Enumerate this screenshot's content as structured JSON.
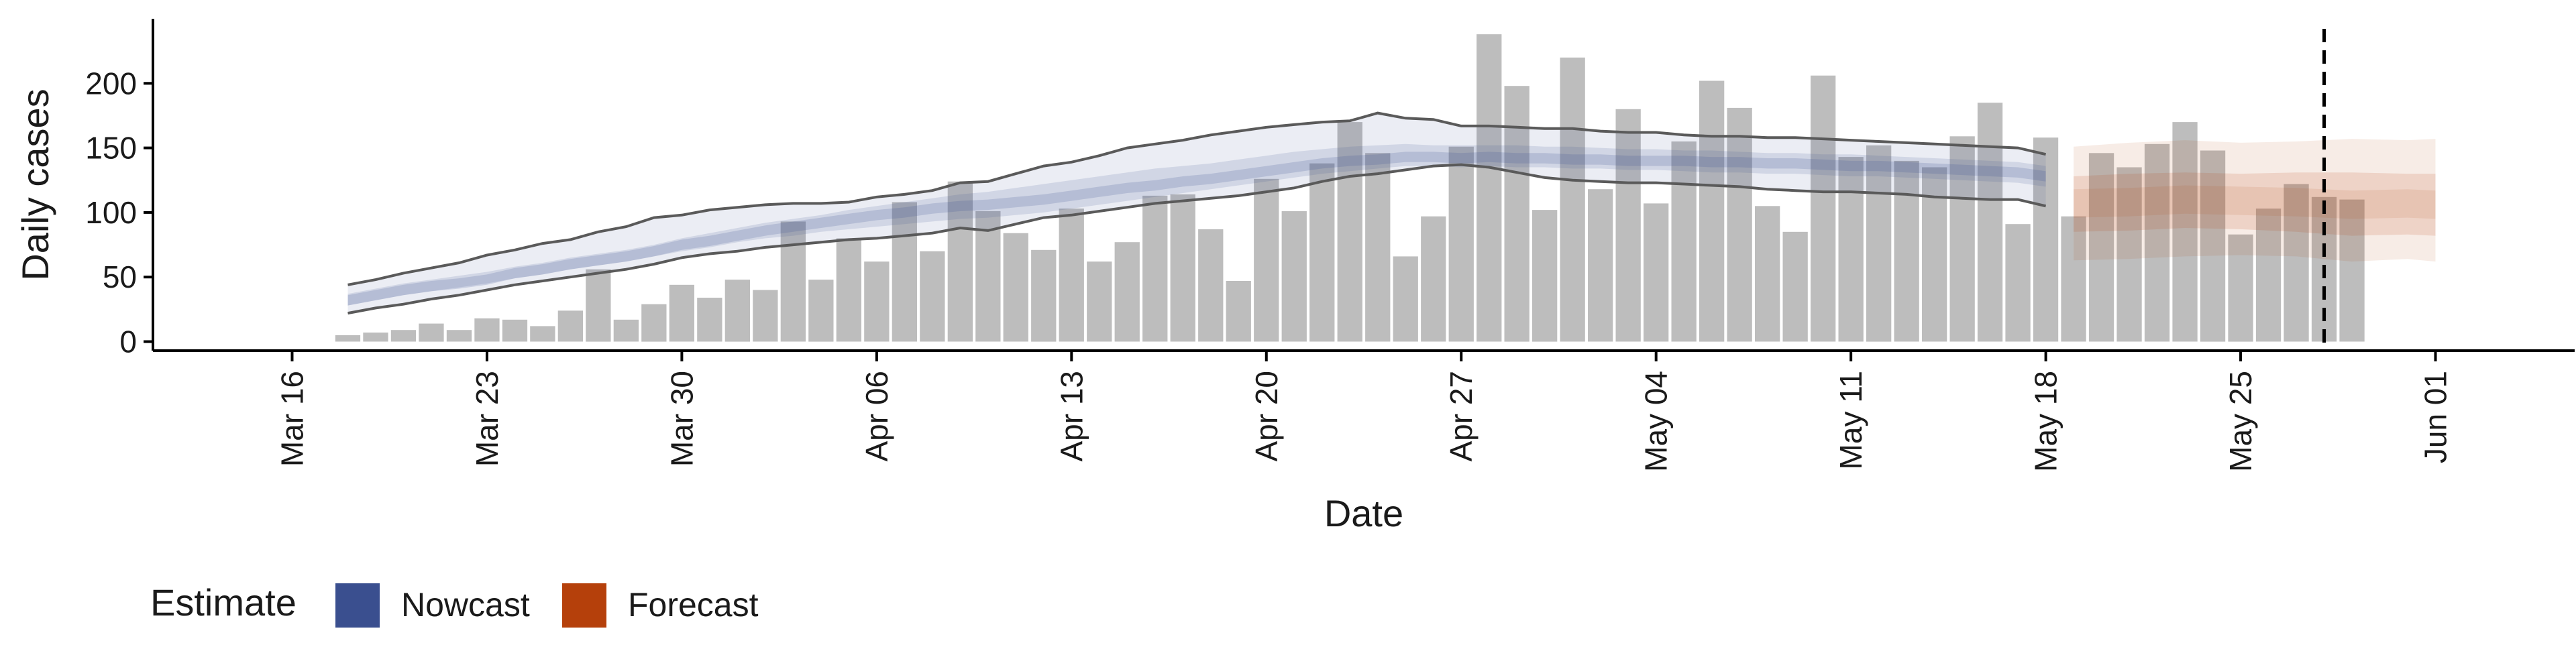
{
  "chart_data": {
    "type": "bar",
    "xlabel": "Date",
    "ylabel": "Daily cases",
    "ylim": [
      -7,
      250
    ],
    "yticks": [
      0,
      50,
      100,
      150,
      200
    ],
    "xlim": [
      "2020-03-11",
      "2020-06-06"
    ],
    "xticks": [
      {
        "date": "2020-03-16",
        "label": "Mar 16"
      },
      {
        "date": "2020-03-23",
        "label": "Mar 23"
      },
      {
        "date": "2020-03-30",
        "label": "Mar 30"
      },
      {
        "date": "2020-04-06",
        "label": "Apr 06"
      },
      {
        "date": "2020-04-13",
        "label": "Apr 13"
      },
      {
        "date": "2020-04-20",
        "label": "Apr 20"
      },
      {
        "date": "2020-04-27",
        "label": "Apr 27"
      },
      {
        "date": "2020-05-04",
        "label": "May 04"
      },
      {
        "date": "2020-05-11",
        "label": "May 11"
      },
      {
        "date": "2020-05-18",
        "label": "May 18"
      },
      {
        "date": "2020-05-25",
        "label": "May 25"
      },
      {
        "date": "2020-06-01",
        "label": "Jun 01"
      }
    ],
    "grid": false,
    "bars": {
      "color": "#bdbdbd",
      "x": [
        "2020-03-18",
        "2020-03-19",
        "2020-03-20",
        "2020-03-21",
        "2020-03-22",
        "2020-03-23",
        "2020-03-24",
        "2020-03-25",
        "2020-03-26",
        "2020-03-27",
        "2020-03-28",
        "2020-03-29",
        "2020-03-30",
        "2020-03-31",
        "2020-04-01",
        "2020-04-02",
        "2020-04-03",
        "2020-04-04",
        "2020-04-05",
        "2020-04-06",
        "2020-04-07",
        "2020-04-08",
        "2020-04-09",
        "2020-04-10",
        "2020-04-11",
        "2020-04-12",
        "2020-04-13",
        "2020-04-14",
        "2020-04-15",
        "2020-04-16",
        "2020-04-17",
        "2020-04-18",
        "2020-04-19",
        "2020-04-20",
        "2020-04-21",
        "2020-04-22",
        "2020-04-23",
        "2020-04-24",
        "2020-04-25",
        "2020-04-26",
        "2020-04-27",
        "2020-04-28",
        "2020-04-29",
        "2020-04-30",
        "2020-05-01",
        "2020-05-02",
        "2020-05-03",
        "2020-05-04",
        "2020-05-05",
        "2020-05-06",
        "2020-05-07",
        "2020-05-08",
        "2020-05-09",
        "2020-05-10",
        "2020-05-11",
        "2020-05-12",
        "2020-05-13",
        "2020-05-14",
        "2020-05-15",
        "2020-05-16",
        "2020-05-17",
        "2020-05-18",
        "2020-05-19",
        "2020-05-20",
        "2020-05-21",
        "2020-05-22",
        "2020-05-23",
        "2020-05-24",
        "2020-05-25",
        "2020-05-26",
        "2020-05-27",
        "2020-05-28",
        "2020-05-29"
      ],
      "values": [
        5,
        7,
        9,
        14,
        9,
        18,
        17,
        12,
        24,
        56,
        17,
        29,
        44,
        34,
        48,
        40,
        93,
        48,
        80,
        62,
        108,
        70,
        124,
        101,
        84,
        71,
        103,
        62,
        77,
        113,
        114,
        87,
        47,
        126,
        101,
        138,
        170,
        146,
        66,
        97,
        151,
        238,
        198,
        102,
        220,
        118,
        180,
        107,
        155,
        202,
        181,
        105,
        85,
        206,
        143,
        152,
        140,
        135,
        159,
        185,
        91,
        158,
        97,
        146,
        135,
        153,
        170,
        148,
        83,
        103,
        122,
        112,
        110
      ]
    },
    "nowcast": {
      "name": "Nowcast",
      "color": "#3a4f8f",
      "start": "2020-03-18",
      "median": [
        32,
        36,
        40,
        43,
        45,
        48,
        53,
        56,
        60,
        63,
        66,
        70,
        75,
        78,
        82,
        86,
        89,
        92,
        95,
        98,
        100,
        103,
        105,
        106,
        108,
        110,
        113,
        116,
        119,
        121,
        124,
        126,
        129,
        132,
        135,
        138,
        140,
        141,
        143,
        143,
        142,
        143,
        142,
        142,
        141,
        141,
        140,
        140,
        140,
        139,
        139,
        138,
        138,
        137,
        136,
        136,
        135,
        134,
        133,
        132,
        131,
        128
      ],
      "outer_lower": [
        22,
        26,
        29,
        33,
        36,
        40,
        44,
        47,
        50,
        53,
        56,
        60,
        65,
        68,
        70,
        73,
        75,
        77,
        79,
        80,
        82,
        84,
        88,
        86,
        91,
        96,
        98,
        101,
        104,
        107,
        109,
        111,
        113,
        116,
        119,
        124,
        128,
        130,
        133,
        136,
        137,
        135,
        131,
        127,
        125,
        124,
        123,
        123,
        122,
        121,
        120,
        118,
        117,
        116,
        116,
        115,
        114,
        112,
        111,
        110,
        110,
        105
      ],
      "outer_upper": [
        44,
        48,
        53,
        57,
        61,
        67,
        71,
        76,
        79,
        85,
        89,
        96,
        98,
        102,
        104,
        106,
        107,
        107,
        108,
        112,
        114,
        117,
        123,
        124,
        130,
        136,
        139,
        144,
        150,
        153,
        156,
        160,
        163,
        166,
        168,
        170,
        171,
        177,
        173,
        172,
        167,
        167,
        166,
        165,
        165,
        163,
        162,
        162,
        160,
        159,
        159,
        158,
        158,
        157,
        156,
        155,
        154,
        153,
        152,
        151,
        150,
        145
      ],
      "inner_lower": [
        28,
        32,
        36,
        39,
        42,
        45,
        49,
        52,
        56,
        59,
        62,
        66,
        70,
        73,
        77,
        80,
        82,
        85,
        87,
        89,
        91,
        93,
        95,
        96,
        98,
        100,
        103,
        106,
        109,
        112,
        115,
        118,
        121,
        124,
        127,
        130,
        132,
        134,
        136,
        136,
        135,
        136,
        135,
        135,
        134,
        134,
        133,
        133,
        132,
        131,
        131,
        130,
        130,
        129,
        128,
        128,
        127,
        126,
        125,
        124,
        123,
        120
      ],
      "inner_upper": [
        37,
        41,
        45,
        48,
        51,
        54,
        58,
        61,
        65,
        68,
        71,
        75,
        80,
        84,
        88,
        92,
        95,
        98,
        102,
        105,
        108,
        111,
        114,
        116,
        119,
        122,
        125,
        128,
        131,
        134,
        136,
        138,
        141,
        144,
        147,
        149,
        151,
        152,
        153,
        152,
        152,
        152,
        152,
        151,
        151,
        150,
        149,
        149,
        148,
        148,
        147,
        146,
        146,
        145,
        145,
        144,
        143,
        142,
        141,
        140,
        139,
        136
      ]
    },
    "forecast": {
      "name": "Forecast",
      "color": "#b5400b",
      "x": [
        "2020-05-19",
        "2020-05-21",
        "2020-05-23",
        "2020-05-25",
        "2020-05-27",
        "2020-05-29",
        "2020-05-31",
        "2020-06-01"
      ],
      "outer_lower": [
        63,
        64,
        66,
        67,
        66,
        62,
        64,
        62
      ],
      "outer_upper": [
        151,
        154,
        156,
        154,
        155,
        157,
        156,
        157
      ],
      "inner_lower": [
        85,
        86,
        88,
        87,
        85,
        82,
        83,
        82
      ],
      "inner_upper": [
        128,
        130,
        131,
        130,
        131,
        131,
        130,
        130
      ],
      "median": [
        107,
        108,
        110,
        109,
        108,
        106,
        107,
        106
      ]
    },
    "reference_line": "2020-05-28",
    "legend": {
      "title": "Estimate",
      "position": "bottom-left",
      "items": [
        {
          "label": "Nowcast",
          "color": "#3a4f8f"
        },
        {
          "label": "Forecast",
          "color": "#b5400b"
        }
      ]
    }
  }
}
